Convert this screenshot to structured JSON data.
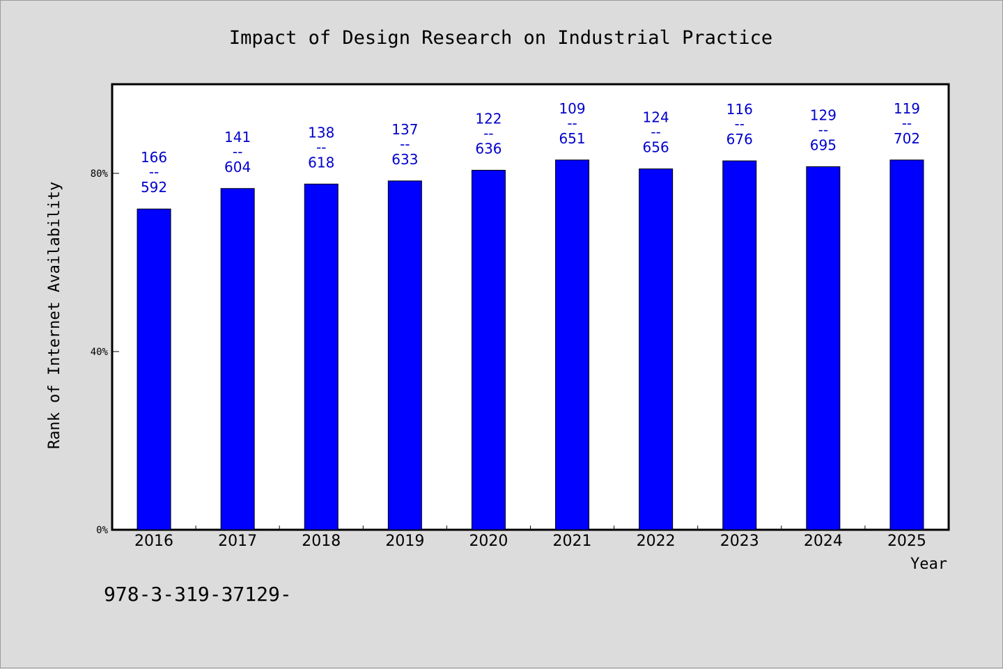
{
  "footnote": "978-3-319-37129-",
  "chart_data": {
    "type": "bar",
    "title": "Impact of Design Research on Industrial Practice",
    "xlabel": "Year",
    "ylabel": "Rank of Internet Availability",
    "categories": [
      "2016",
      "2017",
      "2018",
      "2019",
      "2020",
      "2021",
      "2022",
      "2023",
      "2024",
      "2025"
    ],
    "values": [
      72,
      76.6,
      77.6,
      78.3,
      80.7,
      83,
      81,
      82.8,
      81.5,
      83
    ],
    "labels_top": [
      "166",
      "141",
      "138",
      "137",
      "122",
      "109",
      "124",
      "116",
      "129",
      "119"
    ],
    "labels_separator": "--",
    "labels_bottom": [
      "592",
      "604",
      "618",
      "633",
      "636",
      "651",
      "656",
      "676",
      "695",
      "702"
    ],
    "yticks": [
      0,
      40,
      80
    ],
    "ytick_labels": [
      "0%",
      "40%",
      "80%"
    ],
    "ylim": [
      0,
      100
    ],
    "grid": false,
    "bar_color": "#0000ff",
    "label_color": "#0000cc",
    "background_color": "#dcdcdc",
    "plot_background_color": "#ffffff"
  }
}
